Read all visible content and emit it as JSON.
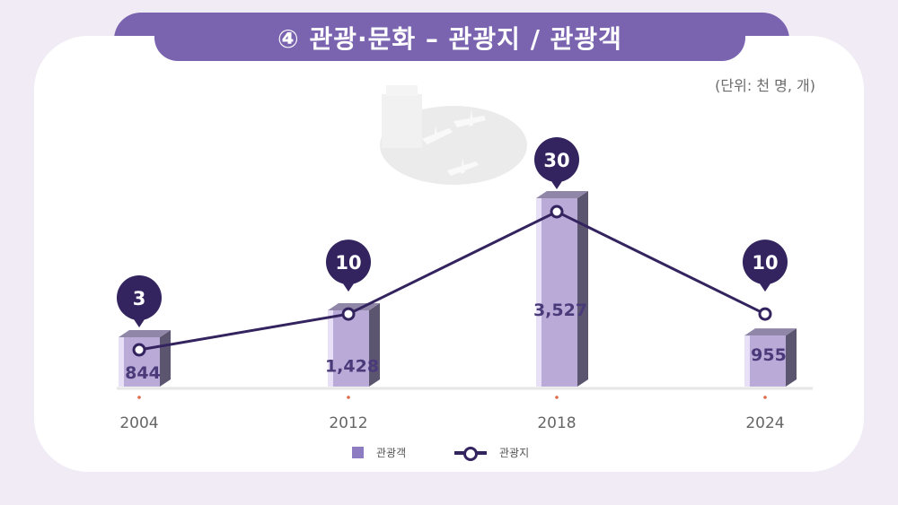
{
  "header": {
    "title": "④ 관광·문화 – 관광지 / 관광객",
    "unit": "(단위: 천 명, 개)"
  },
  "colors": {
    "banner": "#7a64b0",
    "bar_front": "#b9aad8",
    "bar_side": "#5c5570",
    "line": "#33235e",
    "bubble": "#33235e",
    "value_text": "#4a3a7a"
  },
  "legend": {
    "bar_label": "관광객",
    "line_label": "관광지"
  },
  "chart_data": {
    "type": "bar",
    "categories": [
      "2004",
      "2012",
      "2018",
      "2024"
    ],
    "series": [
      {
        "name": "관광객",
        "type": "bar",
        "values": [
          844,
          1428,
          3527,
          955
        ],
        "labels": [
          "844",
          "1,428",
          "3,527",
          "955"
        ]
      },
      {
        "name": "관광지",
        "type": "line",
        "values": [
          3,
          10,
          30,
          10
        ],
        "labels": [
          "3",
          "10",
          "30",
          "10"
        ]
      }
    ],
    "legend_position": "bottom"
  }
}
